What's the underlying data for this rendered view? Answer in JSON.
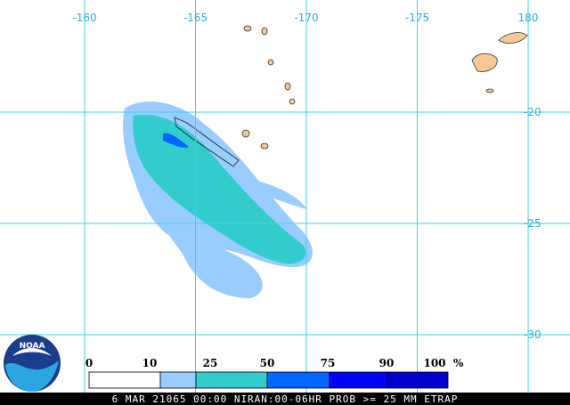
{
  "map": {
    "lon_labels": [
      "-160",
      "-165",
      "-170",
      "-175",
      "180"
    ],
    "lat_labels": [
      "-20",
      "-25",
      "-30"
    ],
    "legend": {
      "ticks": [
        0,
        10,
        25,
        50,
        75,
        90,
        100
      ],
      "unit": "%",
      "colors": [
        "#ffffff",
        "#99ccff",
        "#33cccc",
        "#0066ff",
        "#0000ff",
        "#0000cc"
      ]
    },
    "footer": "6 MAR 21065 00:00 NIRAN:00-06HR PROB >= 25 MM ETRAP",
    "logo": "NOAA"
  }
}
